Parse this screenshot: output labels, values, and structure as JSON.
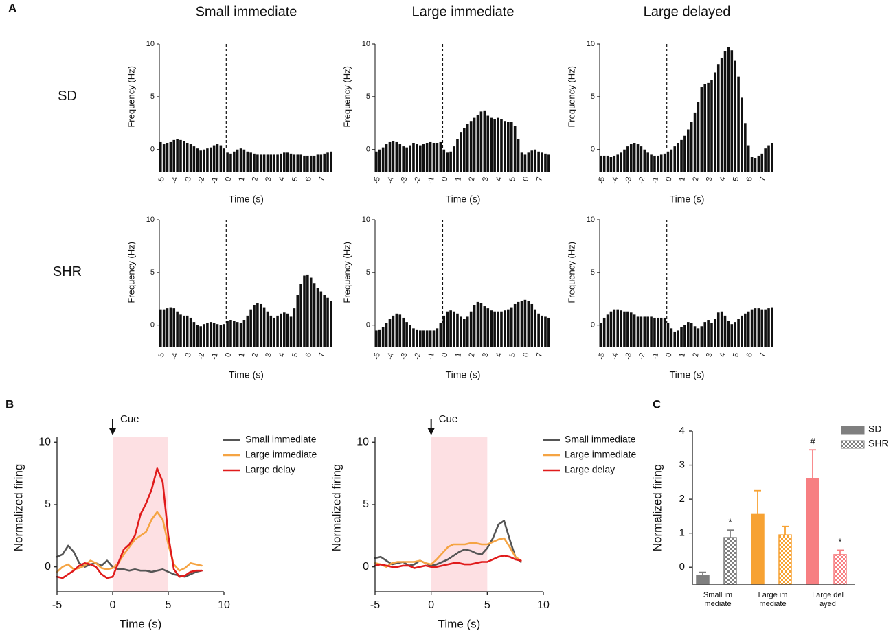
{
  "panel_labels": [
    "A",
    "B",
    "C"
  ],
  "chart_data": [
    {
      "type": "histogram",
      "title": "Small immediate",
      "row_label": "SD",
      "ylabel": "Frequency (Hz)",
      "xlabel": "Time (s)",
      "color": "#111111",
      "bins": [
        -5,
        -4.75,
        -4.5,
        -4.25,
        -4,
        -3.75,
        -3.5,
        -3.25,
        -3,
        -2.75,
        -2.5,
        -2.25,
        -2,
        -1.75,
        -1.5,
        -1.25,
        -1,
        -0.75,
        -0.5,
        -0.25,
        0,
        0.25,
        0.5,
        0.75,
        1,
        1.25,
        1.5,
        1.75,
        2,
        2.25,
        2.5,
        2.75,
        3,
        3.25,
        3.5,
        3.75,
        4,
        4.25,
        4.5,
        4.75,
        5,
        5.25,
        5.5,
        5.75,
        6,
        6.25,
        6.5,
        6.75,
        7,
        7.25,
        7.5,
        7.75,
        8
      ],
      "counts": [
        0.7,
        0.5,
        0.6,
        0.7,
        0.9,
        1.0,
        0.9,
        0.8,
        0.6,
        0.5,
        0.3,
        0.1,
        -0.1,
        0,
        0.1,
        0.2,
        0.4,
        0.5,
        0.4,
        0.1,
        -0.3,
        -0.4,
        -0.2,
        0,
        0.1,
        0,
        -0.2,
        -0.3,
        -0.4,
        -0.5,
        -0.5,
        -0.5,
        -0.5,
        -0.5,
        -0.5,
        -0.5,
        -0.4,
        -0.3,
        -0.3,
        -0.4,
        -0.5,
        -0.5,
        -0.5,
        -0.6,
        -0.6,
        -0.6,
        -0.6,
        -0.5,
        -0.5,
        -0.4,
        -0.3,
        -0.2
      ],
      "xlim": [
        -5,
        8
      ],
      "xticks": [
        -5,
        -4,
        -3,
        -2,
        -1,
        0,
        1,
        2,
        3,
        4,
        5,
        6,
        7
      ],
      "ylim": [
        -2.1,
        10
      ],
      "yticks": [
        0,
        5,
        10
      ],
      "event_x": 0
    },
    {
      "type": "histogram",
      "title": "Large immediate",
      "ylabel": "Frequency (Hz)",
      "xlabel": "Time (s)",
      "color": "#111111",
      "bins": [
        -5,
        -4.75,
        -4.5,
        -4.25,
        -4,
        -3.75,
        -3.5,
        -3.25,
        -3,
        -2.75,
        -2.5,
        -2.25,
        -2,
        -1.75,
        -1.5,
        -1.25,
        -1,
        -0.75,
        -0.5,
        -0.25,
        0,
        0.25,
        0.5,
        0.75,
        1,
        1.25,
        1.5,
        1.75,
        2,
        2.25,
        2.5,
        2.75,
        3,
        3.25,
        3.5,
        3.75,
        4,
        4.25,
        4.5,
        4.75,
        5,
        5.25,
        5.5,
        5.75,
        6,
        6.25,
        6.5,
        6.75,
        7,
        7.25,
        7.5,
        7.75,
        8
      ],
      "counts": [
        -0.2,
        0,
        0.2,
        0.5,
        0.7,
        0.8,
        0.7,
        0.5,
        0.3,
        0.2,
        0.4,
        0.6,
        0.5,
        0.4,
        0.5,
        0.6,
        0.7,
        0.6,
        0.6,
        0.7,
        0,
        -0.3,
        -0.2,
        0.3,
        1.0,
        1.6,
        2.0,
        2.4,
        2.7,
        3.0,
        3.3,
        3.6,
        3.7,
        3.2,
        3.0,
        2.9,
        3.0,
        2.9,
        2.7,
        2.6,
        2.6,
        2.2,
        1.0,
        -0.3,
        -0.5,
        -0.3,
        -0.1,
        0,
        -0.2,
        -0.3,
        -0.4,
        -0.5
      ],
      "xlim": [
        -5,
        8
      ],
      "xticks": [
        -5,
        -4,
        -3,
        -2,
        -1,
        0,
        1,
        2,
        3,
        4,
        5,
        6,
        7
      ],
      "ylim": [
        -2.1,
        10
      ],
      "yticks": [
        0,
        5,
        10
      ],
      "event_x": 0
    },
    {
      "type": "histogram",
      "title": "Large delayed",
      "ylabel": "Frequency (Hz)",
      "xlabel": "Time (s)",
      "color": "#111111",
      "bins": [
        -5,
        -4.75,
        -4.5,
        -4.25,
        -4,
        -3.75,
        -3.5,
        -3.25,
        -3,
        -2.75,
        -2.5,
        -2.25,
        -2,
        -1.75,
        -1.5,
        -1.25,
        -1,
        -0.75,
        -0.5,
        -0.25,
        0,
        0.25,
        0.5,
        0.75,
        1,
        1.25,
        1.5,
        1.75,
        2,
        2.25,
        2.5,
        2.75,
        3,
        3.25,
        3.5,
        3.75,
        4,
        4.25,
        4.5,
        4.75,
        5,
        5.25,
        5.5,
        5.75,
        6,
        6.25,
        6.5,
        6.75,
        7,
        7.25,
        7.5,
        7.75,
        8
      ],
      "counts": [
        -0.6,
        -0.6,
        -0.6,
        -0.7,
        -0.6,
        -0.5,
        -0.3,
        0,
        0.3,
        0.5,
        0.6,
        0.5,
        0.3,
        0,
        -0.3,
        -0.5,
        -0.6,
        -0.6,
        -0.5,
        -0.4,
        -0.2,
        0,
        0.3,
        0.6,
        0.9,
        1.3,
        1.9,
        2.6,
        3.5,
        4.5,
        5.9,
        6.2,
        6.3,
        6.6,
        7.3,
        8.1,
        8.7,
        9.3,
        9.7,
        9.4,
        8.4,
        6.9,
        4.9,
        2.5,
        0.4,
        -0.7,
        -0.8,
        -0.6,
        -0.4,
        0.1,
        0.4,
        0.6
      ],
      "xlim": [
        -5,
        8
      ],
      "xticks": [
        -5,
        -4,
        -3,
        -2,
        -1,
        0,
        1,
        2,
        3,
        4,
        5,
        6,
        7
      ],
      "ylim": [
        -2.1,
        10
      ],
      "yticks": [
        0,
        5,
        10
      ],
      "event_x": 0
    },
    {
      "type": "histogram",
      "row_label": "SHR",
      "ylabel": "Frequency (Hz)",
      "xlabel": "Time (s)",
      "color": "#111111",
      "bins": [
        -5,
        -4.75,
        -4.5,
        -4.25,
        -4,
        -3.75,
        -3.5,
        -3.25,
        -3,
        -2.75,
        -2.5,
        -2.25,
        -2,
        -1.75,
        -1.5,
        -1.25,
        -1,
        -0.75,
        -0.5,
        -0.25,
        0,
        0.25,
        0.5,
        0.75,
        1,
        1.25,
        1.5,
        1.75,
        2,
        2.25,
        2.5,
        2.75,
        3,
        3.25,
        3.5,
        3.75,
        4,
        4.25,
        4.5,
        4.75,
        5,
        5.25,
        5.5,
        5.75,
        6,
        6.25,
        6.5,
        6.75,
        7,
        7.25,
        7.5,
        7.75,
        8
      ],
      "counts": [
        1.5,
        1.5,
        1.6,
        1.7,
        1.6,
        1.3,
        1.0,
        0.9,
        0.9,
        0.7,
        0.3,
        0.0,
        -0.1,
        0.1,
        0.2,
        0.3,
        0.2,
        0.1,
        0.0,
        0.1,
        0.4,
        0.5,
        0.4,
        0.3,
        0.2,
        0.5,
        0.9,
        1.5,
        1.9,
        2.1,
        2.0,
        1.7,
        1.3,
        0.9,
        0.7,
        0.9,
        1.1,
        1.2,
        1.1,
        0.8,
        1.6,
        2.9,
        3.9,
        4.7,
        4.8,
        4.5,
        4.0,
        3.5,
        3.2,
        2.9,
        2.6,
        2.3
      ],
      "xlim": [
        -5,
        8
      ],
      "xticks": [
        -5,
        -4,
        -3,
        -2,
        -1,
        0,
        1,
        2,
        3,
        4,
        5,
        6,
        7
      ],
      "ylim": [
        -2.1,
        10
      ],
      "yticks": [
        0,
        5,
        10
      ],
      "event_x": 0
    },
    {
      "type": "histogram",
      "ylabel": "Frequency (Hz)",
      "xlabel": "Time (s)",
      "color": "#111111",
      "bins": [
        -5,
        -4.75,
        -4.5,
        -4.25,
        -4,
        -3.75,
        -3.5,
        -3.25,
        -3,
        -2.75,
        -2.5,
        -2.25,
        -2,
        -1.75,
        -1.5,
        -1.25,
        -1,
        -0.75,
        -0.5,
        -0.25,
        0,
        0.25,
        0.5,
        0.75,
        1,
        1.25,
        1.5,
        1.75,
        2,
        2.25,
        2.5,
        2.75,
        3,
        3.25,
        3.5,
        3.75,
        4,
        4.25,
        4.5,
        4.75,
        5,
        5.25,
        5.5,
        5.75,
        6,
        6.25,
        6.5,
        6.75,
        7,
        7.25,
        7.5,
        7.75,
        8
      ],
      "counts": [
        -0.5,
        -0.4,
        -0.2,
        0.2,
        0.6,
        0.9,
        1.1,
        1.0,
        0.7,
        0.3,
        0.0,
        -0.3,
        -0.4,
        -0.5,
        -0.5,
        -0.5,
        -0.5,
        -0.5,
        -0.3,
        0.2,
        0.9,
        1.3,
        1.4,
        1.3,
        1.1,
        0.8,
        0.6,
        0.8,
        1.3,
        1.9,
        2.2,
        2.1,
        1.8,
        1.6,
        1.4,
        1.3,
        1.3,
        1.3,
        1.4,
        1.5,
        1.7,
        2.0,
        2.2,
        2.3,
        2.4,
        2.3,
        2.0,
        1.5,
        1.1,
        0.9,
        0.8,
        0.7
      ],
      "xlim": [
        -5,
        8
      ],
      "xticks": [
        -5,
        -4,
        -3,
        -2,
        -1,
        0,
        1,
        2,
        3,
        4,
        5,
        6,
        7
      ],
      "ylim": [
        -2.1,
        10
      ],
      "yticks": [
        0,
        5,
        10
      ],
      "event_x": 0
    },
    {
      "type": "histogram",
      "ylabel": "Frequency (Hz)",
      "xlabel": "Time (s)",
      "color": "#111111",
      "bins": [
        -5,
        -4.75,
        -4.5,
        -4.25,
        -4,
        -3.75,
        -3.5,
        -3.25,
        -3,
        -2.75,
        -2.5,
        -2.25,
        -2,
        -1.75,
        -1.5,
        -1.25,
        -1,
        -0.75,
        -0.5,
        -0.25,
        0,
        0.25,
        0.5,
        0.75,
        1,
        1.25,
        1.5,
        1.75,
        2,
        2.25,
        2.5,
        2.75,
        3,
        3.25,
        3.5,
        3.75,
        4,
        4.25,
        4.5,
        4.75,
        5,
        5.25,
        5.5,
        5.75,
        6,
        6.25,
        6.5,
        6.75,
        7,
        7.25,
        7.5,
        7.75,
        8
      ],
      "counts": [
        0.2,
        0.7,
        1.0,
        1.3,
        1.5,
        1.5,
        1.4,
        1.3,
        1.3,
        1.2,
        1.0,
        0.8,
        0.8,
        0.8,
        0.8,
        0.8,
        0.7,
        0.7,
        0.7,
        0.7,
        0.2,
        -0.3,
        -0.6,
        -0.5,
        -0.2,
        0.0,
        0.3,
        0.2,
        -0.1,
        -0.3,
        -0.1,
        0.3,
        0.5,
        0.2,
        0.6,
        1.2,
        1.3,
        0.9,
        0.4,
        0.1,
        0.3,
        0.6,
        0.9,
        1.1,
        1.3,
        1.5,
        1.6,
        1.6,
        1.5,
        1.5,
        1.6,
        1.7
      ],
      "xlim": [
        -5,
        8
      ],
      "xticks": [
        -5,
        -4,
        -3,
        -2,
        -1,
        0,
        1,
        2,
        3,
        4,
        5,
        6,
        7
      ],
      "ylim": [
        -2.1,
        10
      ],
      "yticks": [
        0,
        5,
        10
      ],
      "event_x": 0
    },
    {
      "type": "line",
      "ylabel": "Normalized firing",
      "xlabel": "Time (s)",
      "x": [
        -5,
        -4.5,
        -4,
        -3.5,
        -3,
        -2.5,
        -2,
        -1.5,
        -1,
        -0.5,
        0,
        0.5,
        1,
        1.5,
        2,
        2.5,
        3,
        3.5,
        4,
        4.5,
        5,
        5.5,
        6,
        6.5,
        7,
        7.5,
        8
      ],
      "series": [
        {
          "name": "Small immediate",
          "color": "#555555",
          "values": [
            0.8,
            1.0,
            1.7,
            1.2,
            0.3,
            0.0,
            0.2,
            0.3,
            0.1,
            0.5,
            0,
            -0.2,
            -0.2,
            -0.3,
            -0.2,
            -0.3,
            -0.3,
            -0.4,
            -0.3,
            -0.2,
            -0.4,
            -0.6,
            -0.7,
            -0.8,
            -0.6,
            -0.4,
            -0.3
          ]
        },
        {
          "name": "Large immediate",
          "color": "#f5a443",
          "values": [
            -0.4,
            0,
            0.2,
            -0.2,
            -0.1,
            0.1,
            0.5,
            0.3,
            -0.1,
            -0.2,
            -0.1,
            0.3,
            1.0,
            1.6,
            2.2,
            2.5,
            2.8,
            3.8,
            4.4,
            3.8,
            1.8,
            0.2,
            -0.3,
            -0.1,
            0.3,
            0.2,
            0.1
          ]
        },
        {
          "name": "Large delay",
          "color": "#e01b1b",
          "values": [
            -0.8,
            -0.9,
            -0.6,
            -0.3,
            0.1,
            0.3,
            0.2,
            0.0,
            -0.6,
            -0.9,
            -0.8,
            0.3,
            1.4,
            1.8,
            2.5,
            4.2,
            5.1,
            6.2,
            7.9,
            6.8,
            2.5,
            -0.2,
            -0.8,
            -0.7,
            -0.4,
            -0.3,
            -0.3
          ]
        }
      ],
      "xlim": [
        -5,
        10
      ],
      "xticks": [
        -5,
        0,
        5,
        10
      ],
      "ylim": [
        -2,
        10.4
      ],
      "yticks": [
        0,
        5,
        10
      ],
      "shade": [
        0,
        5
      ],
      "shade_color": "#fde0e3",
      "cue": {
        "label": "Cue",
        "x": 0
      },
      "legend": "right"
    },
    {
      "type": "line",
      "ylabel": "Normalized firing",
      "xlabel": "Time (s)",
      "x": [
        -5,
        -4.5,
        -4,
        -3.5,
        -3,
        -2.5,
        -2,
        -1.5,
        -1,
        -0.5,
        0,
        0.5,
        1,
        1.5,
        2,
        2.5,
        3,
        3.5,
        4,
        4.5,
        5,
        5.5,
        6,
        6.5,
        7,
        7.5,
        8
      ],
      "series": [
        {
          "name": "Small immediate",
          "color": "#555555",
          "values": [
            0.7,
            0.8,
            0.5,
            0.2,
            0.3,
            0.4,
            0.1,
            0.2,
            0.5,
            0.3,
            0.1,
            0.2,
            0.4,
            0.6,
            0.9,
            1.2,
            1.4,
            1.3,
            1.1,
            1.0,
            1.5,
            2.3,
            3.4,
            3.7,
            2.2,
            0.8,
            0.4
          ]
        },
        {
          "name": "Large immediate",
          "color": "#f5a443",
          "values": [
            0.3,
            0.2,
            0.0,
            0.3,
            0.4,
            0.4,
            0.4,
            0.4,
            0.5,
            0.3,
            0.2,
            0.6,
            1.1,
            1.6,
            1.8,
            1.8,
            1.8,
            1.9,
            1.9,
            1.8,
            1.8,
            2.0,
            2.2,
            2.3,
            1.6,
            0.8,
            0.5
          ]
        },
        {
          "name": "Large delay",
          "color": "#e01b1b",
          "values": [
            0.1,
            0.2,
            0.1,
            0.0,
            0.0,
            0.1,
            0.1,
            -0.1,
            0.0,
            0.1,
            0.0,
            0.0,
            0.1,
            0.2,
            0.3,
            0.3,
            0.2,
            0.2,
            0.3,
            0.4,
            0.4,
            0.6,
            0.8,
            0.9,
            0.8,
            0.6,
            0.5
          ]
        }
      ],
      "xlim": [
        -5,
        10
      ],
      "xticks": [
        -5,
        0,
        5,
        10
      ],
      "ylim": [
        -2,
        10.4
      ],
      "yticks": [
        0,
        5,
        10
      ],
      "shade": [
        0,
        5
      ],
      "shade_color": "#fde0e3",
      "cue": {
        "label": "Cue",
        "x": 0
      },
      "legend": "right"
    },
    {
      "type": "bar",
      "ylabel": "Normalized firing",
      "categories": [
        "Small immediate",
        "Large immediate",
        "Large delayed"
      ],
      "category_colors": [
        "#7f7f7f",
        "#f7a233",
        "#f77f82"
      ],
      "legend_color": "#7f7f7f",
      "series": [
        {
          "name": "SD",
          "pattern": "solid",
          "values": [
            -0.25,
            1.55,
            2.6
          ],
          "errors": [
            0.1,
            0.7,
            0.85
          ],
          "markers": [
            null,
            null,
            "#"
          ]
        },
        {
          "name": "SHR",
          "pattern": "checkered",
          "values": [
            0.87,
            0.95,
            0.37
          ],
          "errors": [
            0.22,
            0.25,
            0.13
          ],
          "markers": [
            "*",
            null,
            "*"
          ]
        }
      ],
      "ylim": [
        -0.5,
        4
      ],
      "yticks": [
        0,
        1,
        2,
        3,
        4
      ],
      "legend": "upper right"
    }
  ]
}
